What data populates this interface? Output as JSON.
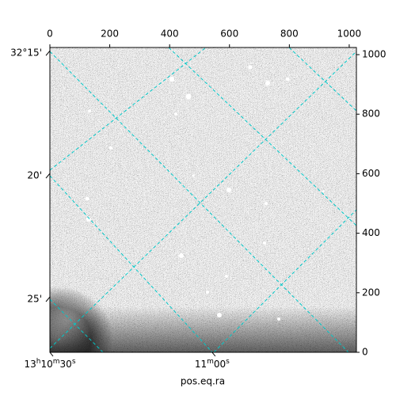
{
  "chart_data": {
    "type": "image",
    "xlabel": "pos.eq.ra",
    "xlim": [
      0,
      1024
    ],
    "ylim": [
      0,
      1024
    ],
    "xticks": [
      0,
      200,
      400,
      600,
      800,
      1000
    ],
    "yticks": [
      0,
      200,
      400,
      600,
      800,
      1000
    ],
    "ra_ticks": [
      {
        "value": 0,
        "label": "13h10m30s"
      },
      {
        "value": 542,
        "label": "11m00s"
      }
    ],
    "dec_ticks": [
      {
        "value": 1005,
        "label": "32°15'"
      },
      {
        "value": 593,
        "label": "20'"
      },
      {
        "value": 178,
        "label": "25'"
      }
    ],
    "grid": true,
    "grid_color": "#00c8c8"
  }
}
